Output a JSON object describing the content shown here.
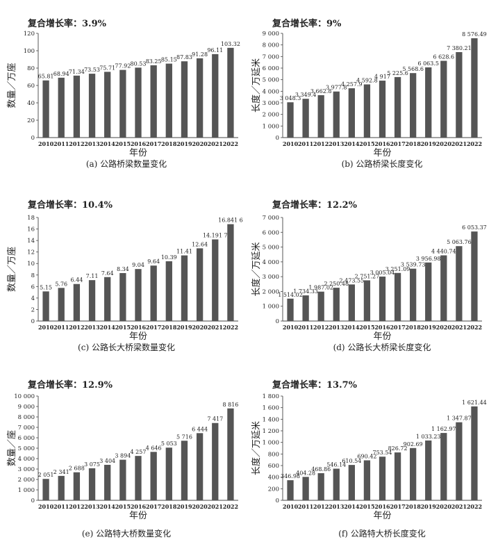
{
  "chart_data": [
    {
      "type": "bar",
      "growth_label": "复合增长率：3.9%",
      "caption": "(a) 公路桥梁数量变化",
      "xlabel": "年份",
      "ylabel": "数量／万座",
      "ylim": [
        0,
        120
      ],
      "yticks": [
        "0",
        "20",
        "40",
        "60",
        "80",
        "100",
        "120"
      ],
      "categories": [
        "2010",
        "2011",
        "2012",
        "2013",
        "2014",
        "2015",
        "2016",
        "2017",
        "2018",
        "2019",
        "2020",
        "2021",
        "2022"
      ],
      "values": [
        65.81,
        68.94,
        71.34,
        73.53,
        75.71,
        77.92,
        80.53,
        83.25,
        85.15,
        87.83,
        91.28,
        96.11,
        103.32
      ],
      "value_labels": [
        "65.81",
        "68.94",
        "71.34",
        "73.53",
        "75.71",
        "77.92",
        "80.53",
        "83.25",
        "85.15",
        "87.83",
        "91.28",
        "96.11",
        "103.32"
      ],
      "bar_color": "#555555"
    },
    {
      "type": "bar",
      "growth_label": "复合增长率：9%",
      "caption": "(b) 公路桥梁长度变化",
      "xlabel": "年份",
      "ylabel": "长度／万延米",
      "ylim": [
        0,
        9000
      ],
      "yticks": [
        "0",
        "1 000",
        "2 000",
        "3 000",
        "4 000",
        "5 000",
        "6 000",
        "7 000",
        "8 000",
        "9 000"
      ],
      "categories": [
        "2010",
        "2011",
        "2012",
        "2013",
        "2014",
        "2015",
        "2016",
        "2017",
        "2018",
        "2019",
        "2020",
        "2021",
        "2022"
      ],
      "values": [
        3048.3,
        3349.4,
        3662.8,
        3977.8,
        4257.9,
        4592.8,
        4917,
        5225.6,
        5568.6,
        6063.5,
        6628.6,
        7380.21,
        8576.49
      ],
      "value_labels": [
        "3 048.3",
        "3 349.4",
        "3 662.8",
        "3 977.8",
        "4 257.9",
        "4 592.8",
        "4 917",
        "5 225.6",
        "5 568.6",
        "6 063.5",
        "6 628.6",
        "7 380.21",
        "8 576.49"
      ],
      "bar_color": "#555555"
    },
    {
      "type": "bar",
      "growth_label": "复合增长率：10.4%",
      "caption": "(c) 公路长大桥梁数量变化",
      "xlabel": "年份",
      "ylabel": "数量／万座",
      "ylim": [
        0,
        18
      ],
      "yticks": [
        "0",
        "2",
        "4",
        "6",
        "8",
        "10",
        "12",
        "14",
        "16",
        "18"
      ],
      "categories": [
        "2010",
        "2011",
        "2012",
        "2013",
        "2014",
        "2015",
        "2016",
        "2017",
        "2018",
        "2019",
        "2020",
        "2021",
        "2022"
      ],
      "values": [
        5.15,
        5.76,
        6.44,
        7.11,
        7.64,
        8.34,
        9.04,
        9.64,
        10.39,
        11.41,
        12.64,
        14.1917,
        16.8416
      ],
      "value_labels": [
        "5.15",
        "5.76",
        "6.44",
        "7.11",
        "7.64",
        "8.34",
        "9.04",
        "9.64",
        "10.39",
        "11.41",
        "12.64",
        "14.191 7",
        "16.841 6"
      ],
      "bar_color": "#555555"
    },
    {
      "type": "bar",
      "growth_label": "复合增长率：12.2%",
      "caption": "(d) 公路长大桥梁长度变化",
      "xlabel": "年份",
      "ylabel": "长度／万延米",
      "ylim": [
        0,
        7000
      ],
      "yticks": [
        "0",
        "1 000",
        "2 000",
        "3 000",
        "4 000",
        "5 000",
        "6 000",
        "7 000"
      ],
      "categories": [
        "2010",
        "2011",
        "2012",
        "2013",
        "2014",
        "2015",
        "2016",
        "2017",
        "2018",
        "2019",
        "2020",
        "2021",
        "2022"
      ],
      "values": [
        1514.02,
        1734.33,
        1987.02,
        2250.48,
        2473.55,
        2751.27,
        3005.04,
        3251.09,
        3539.73,
        3956.98,
        4440.74,
        5063.76,
        6053.37
      ],
      "value_labels": [
        "1 514.02",
        "1 734.33",
        "1 987.02",
        "2 250.48",
        "2 473.55",
        "2 751.27",
        "3 005.04",
        "3 251.09",
        "3 539.73",
        "3 956.98",
        "4 440.74",
        "5 063.76",
        "6 053.37"
      ],
      "bar_color": "#555555"
    },
    {
      "type": "bar",
      "growth_label": "复合增长率：12.9%",
      "caption": "(e) 公路特大桥数量变化",
      "xlabel": "年份",
      "ylabel": "数量／座",
      "ylim": [
        0,
        10000
      ],
      "yticks": [
        "0",
        "1 000",
        "2 000",
        "3 000",
        "4 000",
        "5 000",
        "6 000",
        "7 000",
        "8 000",
        "9 000",
        "10 000"
      ],
      "categories": [
        "2010",
        "2011",
        "2012",
        "2013",
        "2014",
        "2015",
        "2016",
        "2017",
        "2018",
        "2019",
        "2020",
        "2021",
        "2022"
      ],
      "values": [
        2051,
        2341,
        2688,
        3075,
        3404,
        3894,
        4257,
        4646,
        5053,
        5716,
        6444,
        7417,
        8816
      ],
      "value_labels": [
        "2 051",
        "2 341",
        "2 688",
        "3 075",
        "3 404",
        "3 894",
        "4 257",
        "4 646",
        "5 053",
        "5 716",
        "6 444",
        "7 417",
        "8 816"
      ],
      "bar_color": "#555555"
    },
    {
      "type": "bar",
      "growth_label": "复合增长率：13.7%",
      "caption": "(f) 公路特大桥长度变化",
      "xlabel": "年份",
      "ylabel": "长度／万延米",
      "ylim": [
        0,
        1800
      ],
      "yticks": [
        "0",
        "200",
        "400",
        "600",
        "800",
        "1 000",
        "1 200",
        "1 400",
        "1 600",
        "1 800"
      ],
      "categories": [
        "2010",
        "2011",
        "2012",
        "2013",
        "2014",
        "2015",
        "2016",
        "2017",
        "2018",
        "2019",
        "2020",
        "2021",
        "2022"
      ],
      "values": [
        346.98,
        404.28,
        468.86,
        546.14,
        610.54,
        690.42,
        753.54,
        826.72,
        902.69,
        1033.23,
        1162.97,
        1347.87,
        1621.44
      ],
      "value_labels": [
        "346.98",
        "404.28",
        "468.86",
        "546.14",
        "610.54",
        "690.42",
        "753.54",
        "826.72",
        "902.69",
        "1 033.23",
        "1 162.97",
        "1 347.87",
        "1 621.44"
      ],
      "bar_color": "#555555"
    }
  ]
}
